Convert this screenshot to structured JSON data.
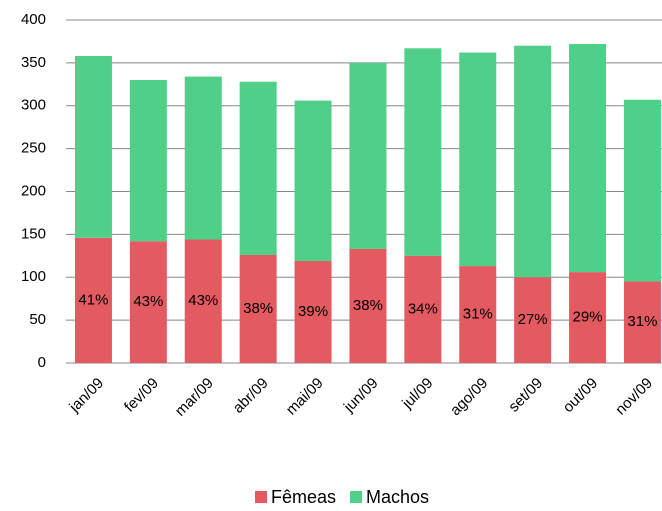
{
  "chart_data": {
    "type": "stacked_bar",
    "categories": [
      "jan/09",
      "fev/09",
      "mar/09",
      "abr/09",
      "mai/09",
      "jun/09",
      "jul/09",
      "ago/09",
      "set/09",
      "out/09",
      "nov/09"
    ],
    "series": [
      {
        "name": "Fêmeas",
        "color": "#e35a60",
        "values": [
          146,
          142,
          144,
          126,
          119,
          133,
          125,
          113,
          100,
          106,
          95
        ],
        "data_labels": [
          "41%",
          "43%",
          "43%",
          "38%",
          "39%",
          "38%",
          "34%",
          "31%",
          "27%",
          "29%",
          "31%"
        ]
      },
      {
        "name": "Machos",
        "color": "#4fcf88",
        "values": [
          212,
          188,
          190,
          202,
          187,
          217,
          242,
          249,
          270,
          266,
          212
        ]
      }
    ],
    "ylim": [
      0,
      400
    ],
    "yticks": [
      0,
      50,
      100,
      150,
      200,
      250,
      300,
      350,
      400
    ],
    "grid": true,
    "legend": "bottom"
  }
}
